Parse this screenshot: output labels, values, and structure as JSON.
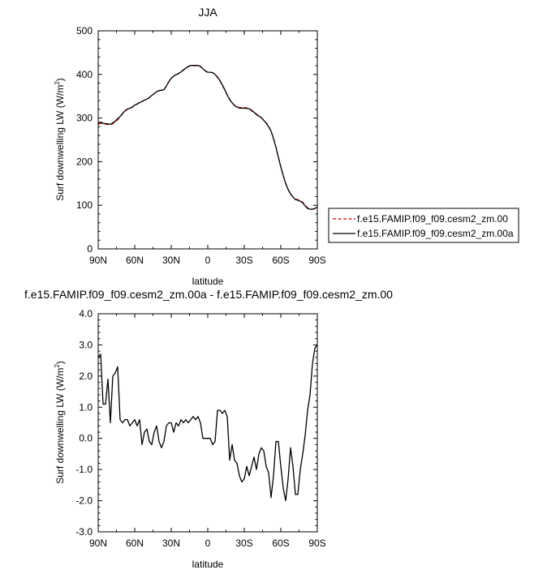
{
  "chart_data": [
    {
      "type": "line",
      "title": "JJA",
      "xlabel": "latitude",
      "ylabel": "Surf downwelling LW (W/m²)",
      "ylabel_main": "Surf downwelling LW (W/m",
      "ylabel_sup": "2",
      "ylabel_end": ")",
      "xlim": [
        90,
        -90
      ],
      "ylim": [
        0,
        500
      ],
      "x_ticks": [
        90,
        60,
        30,
        0,
        -30,
        -60,
        -90
      ],
      "x_tick_labels": [
        "90N",
        "60N",
        "30N",
        "0",
        "30S",
        "60S",
        "90S"
      ],
      "y_ticks": [
        0,
        100,
        200,
        300,
        400,
        500
      ],
      "y_tick_labels": [
        "0",
        "100",
        "200",
        "300",
        "400",
        "500"
      ],
      "grid": false,
      "legend_position": "right",
      "series": [
        {
          "name": "f.e15.FAMIP.f09_f09.cesm2_zm.00",
          "color": "#cc0000",
          "dash": "dashed",
          "x": [
            90,
            88,
            86,
            84,
            82,
            80,
            78,
            76,
            74,
            72,
            70,
            68,
            66,
            64,
            62,
            60,
            58,
            56,
            54,
            52,
            50,
            48,
            46,
            44,
            42,
            40,
            38,
            36,
            34,
            32,
            30,
            28,
            26,
            24,
            22,
            20,
            18,
            16,
            14,
            12,
            10,
            8,
            6,
            4,
            2,
            0,
            -2,
            -4,
            -6,
            -8,
            -10,
            -12,
            -14,
            -16,
            -18,
            -20,
            -22,
            -24,
            -26,
            -28,
            -30,
            -32,
            -34,
            -36,
            -38,
            -40,
            -42,
            -44,
            -46,
            -48,
            -50,
            -52,
            -54,
            -56,
            -58,
            -60,
            -62,
            -64,
            -66,
            -68,
            -70,
            -72,
            -74,
            -76,
            -78,
            -80,
            -82,
            -84,
            -86,
            -88,
            -90
          ],
          "y": [
            286,
            288,
            287,
            286,
            285,
            285,
            287,
            291,
            296,
            303,
            310,
            316,
            320,
            322,
            325,
            329,
            332,
            335,
            338,
            341,
            343,
            347,
            352,
            356,
            360,
            363,
            364,
            365,
            373,
            383,
            391,
            396,
            399,
            402,
            405,
            410,
            414,
            418,
            420,
            420,
            420,
            420,
            418,
            413,
            408,
            405,
            405,
            404,
            400,
            393,
            385,
            375,
            364,
            353,
            343,
            335,
            329,
            326,
            324,
            324,
            324,
            323,
            322,
            318,
            314,
            309,
            305,
            301,
            295,
            289,
            281,
            270,
            253,
            233,
            210,
            188,
            168,
            150,
            136,
            126,
            119,
            114,
            113,
            111,
            107,
            100,
            94,
            92,
            91,
            92,
            93
          ]
        },
        {
          "name": "f.e15.FAMIP.f09_f09.cesm2_zm.00a",
          "color": "#000000",
          "dash": "solid",
          "x": [
            90,
            88,
            86,
            84,
            82,
            80,
            78,
            76,
            74,
            72,
            70,
            68,
            66,
            64,
            62,
            60,
            58,
            56,
            54,
            52,
            50,
            48,
            46,
            44,
            42,
            40,
            38,
            36,
            34,
            32,
            30,
            28,
            26,
            24,
            22,
            20,
            18,
            16,
            14,
            12,
            10,
            8,
            6,
            4,
            2,
            0,
            -2,
            -4,
            -6,
            -8,
            -10,
            -12,
            -14,
            -16,
            -18,
            -20,
            -22,
            -24,
            -26,
            -28,
            -30,
            -32,
            -34,
            -36,
            -38,
            -40,
            -42,
            -44,
            -46,
            -48,
            -50,
            -52,
            -54,
            -56,
            -58,
            -60,
            -62,
            -64,
            -66,
            -68,
            -70,
            -72,
            -74,
            -76,
            -78,
            -80,
            -82,
            -84,
            -86,
            -88,
            -90
          ],
          "y": [
            288.6,
            290.7,
            288.1,
            287.1,
            286.9,
            285.5,
            289.0,
            293.1,
            298.3,
            303.6,
            310.5,
            316.6,
            320.6,
            322.4,
            325.5,
            329.6,
            332.4,
            335.6,
            337.8,
            341.2,
            343.3,
            346.9,
            351.8,
            356.2,
            360.4,
            362.9,
            363.7,
            364.9,
            373.4,
            383.5,
            391.5,
            396.2,
            399.5,
            402.4,
            405.6,
            410.5,
            414.6,
            418.5,
            420.6,
            420.7,
            420.6,
            420.7,
            418.5,
            413.0,
            408.0,
            405.0,
            405.0,
            403.8,
            399.9,
            393.9,
            385.9,
            375.8,
            364.9,
            352.7,
            342.3,
            334.8,
            328.3,
            325.2,
            322.8,
            322.6,
            322.7,
            322.1,
            321.3,
            316.8,
            313.4,
            307.8,
            304.2,
            301.1,
            294.8,
            288.1,
            280.0,
            269.8,
            252.7,
            233.2,
            210.1,
            188.1,
            168.2,
            149.8,
            136.2,
            125.8,
            118.7,
            113.1,
            111.6,
            109.2,
            105.7,
            98.5,
            92.6,
            91.0,
            90.8,
            92.9,
            96.0
          ]
        }
      ]
    },
    {
      "type": "line",
      "title": "f.e15.FAMIP.f09_f09.cesm2_zm.00a - f.e15.FAMIP.f09_f09.cesm2_zm.00",
      "xlabel": "latitude",
      "ylabel": "Surf downwelling LW (W/m²)",
      "ylabel_main": "Surf downwelling LW (W/m",
      "ylabel_sup": "2",
      "ylabel_end": ")",
      "xlim": [
        90,
        -90
      ],
      "ylim": [
        -3,
        4
      ],
      "x_ticks": [
        90,
        60,
        30,
        0,
        -30,
        -60,
        -90
      ],
      "x_tick_labels": [
        "90N",
        "60N",
        "30N",
        "0",
        "30S",
        "60S",
        "90S"
      ],
      "y_ticks": [
        -3,
        -2,
        -1,
        0,
        1,
        2,
        3,
        4
      ],
      "y_tick_labels": [
        "-3.0",
        "-2.0",
        "-1.0",
        "0.0",
        "1.0",
        "2.0",
        "3.0",
        "4.0"
      ],
      "grid": false,
      "series": [
        {
          "color": "#000000",
          "dash": "solid",
          "x": [
            90,
            88,
            86,
            84,
            82,
            80,
            78,
            76,
            74,
            72,
            70,
            68,
            66,
            64,
            62,
            60,
            58,
            56,
            54,
            52,
            50,
            48,
            46,
            44,
            42,
            40,
            38,
            36,
            34,
            32,
            30,
            28,
            26,
            24,
            22,
            20,
            18,
            16,
            14,
            12,
            10,
            8,
            6,
            4,
            2,
            0,
            -2,
            -4,
            -6,
            -8,
            -10,
            -12,
            -14,
            -16,
            -18,
            -20,
            -22,
            -24,
            -26,
            -28,
            -30,
            -32,
            -34,
            -36,
            -38,
            -40,
            -42,
            -44,
            -46,
            -48,
            -50,
            -52,
            -54,
            -56,
            -58,
            -60,
            -62,
            -64,
            -66,
            -68,
            -70,
            -72,
            -74,
            -76,
            -78,
            -80,
            -82,
            -84,
            -86,
            -88,
            -90
          ],
          "y": [
            2.6,
            2.7,
            1.1,
            1.1,
            1.9,
            0.5,
            2.0,
            2.1,
            2.3,
            0.6,
            0.5,
            0.6,
            0.6,
            0.4,
            0.5,
            0.6,
            0.4,
            0.6,
            -0.2,
            0.2,
            0.3,
            -0.1,
            -0.2,
            0.2,
            0.4,
            -0.1,
            -0.3,
            -0.1,
            0.4,
            0.5,
            0.5,
            0.2,
            0.5,
            0.4,
            0.6,
            0.5,
            0.6,
            0.5,
            0.6,
            0.7,
            0.6,
            0.7,
            0.5,
            0.0,
            0.0,
            0.0,
            0.0,
            -0.2,
            -0.1,
            0.9,
            0.9,
            0.8,
            0.9,
            0.7,
            -0.7,
            -0.2,
            -0.7,
            -0.8,
            -1.2,
            -1.4,
            -1.3,
            -0.9,
            -1.2,
            -0.9,
            -0.6,
            -1.0,
            -0.5,
            -0.3,
            -0.4,
            -0.9,
            -1.1,
            -1.9,
            -1.2,
            -0.1,
            -0.1,
            -0.9,
            -1.6,
            -2.0,
            -1.3,
            -0.3,
            -0.9,
            -1.8,
            -1.8,
            -1.0,
            -0.5,
            0.1,
            0.9,
            1.4,
            2.4,
            2.9,
            3.0
          ]
        }
      ]
    }
  ]
}
